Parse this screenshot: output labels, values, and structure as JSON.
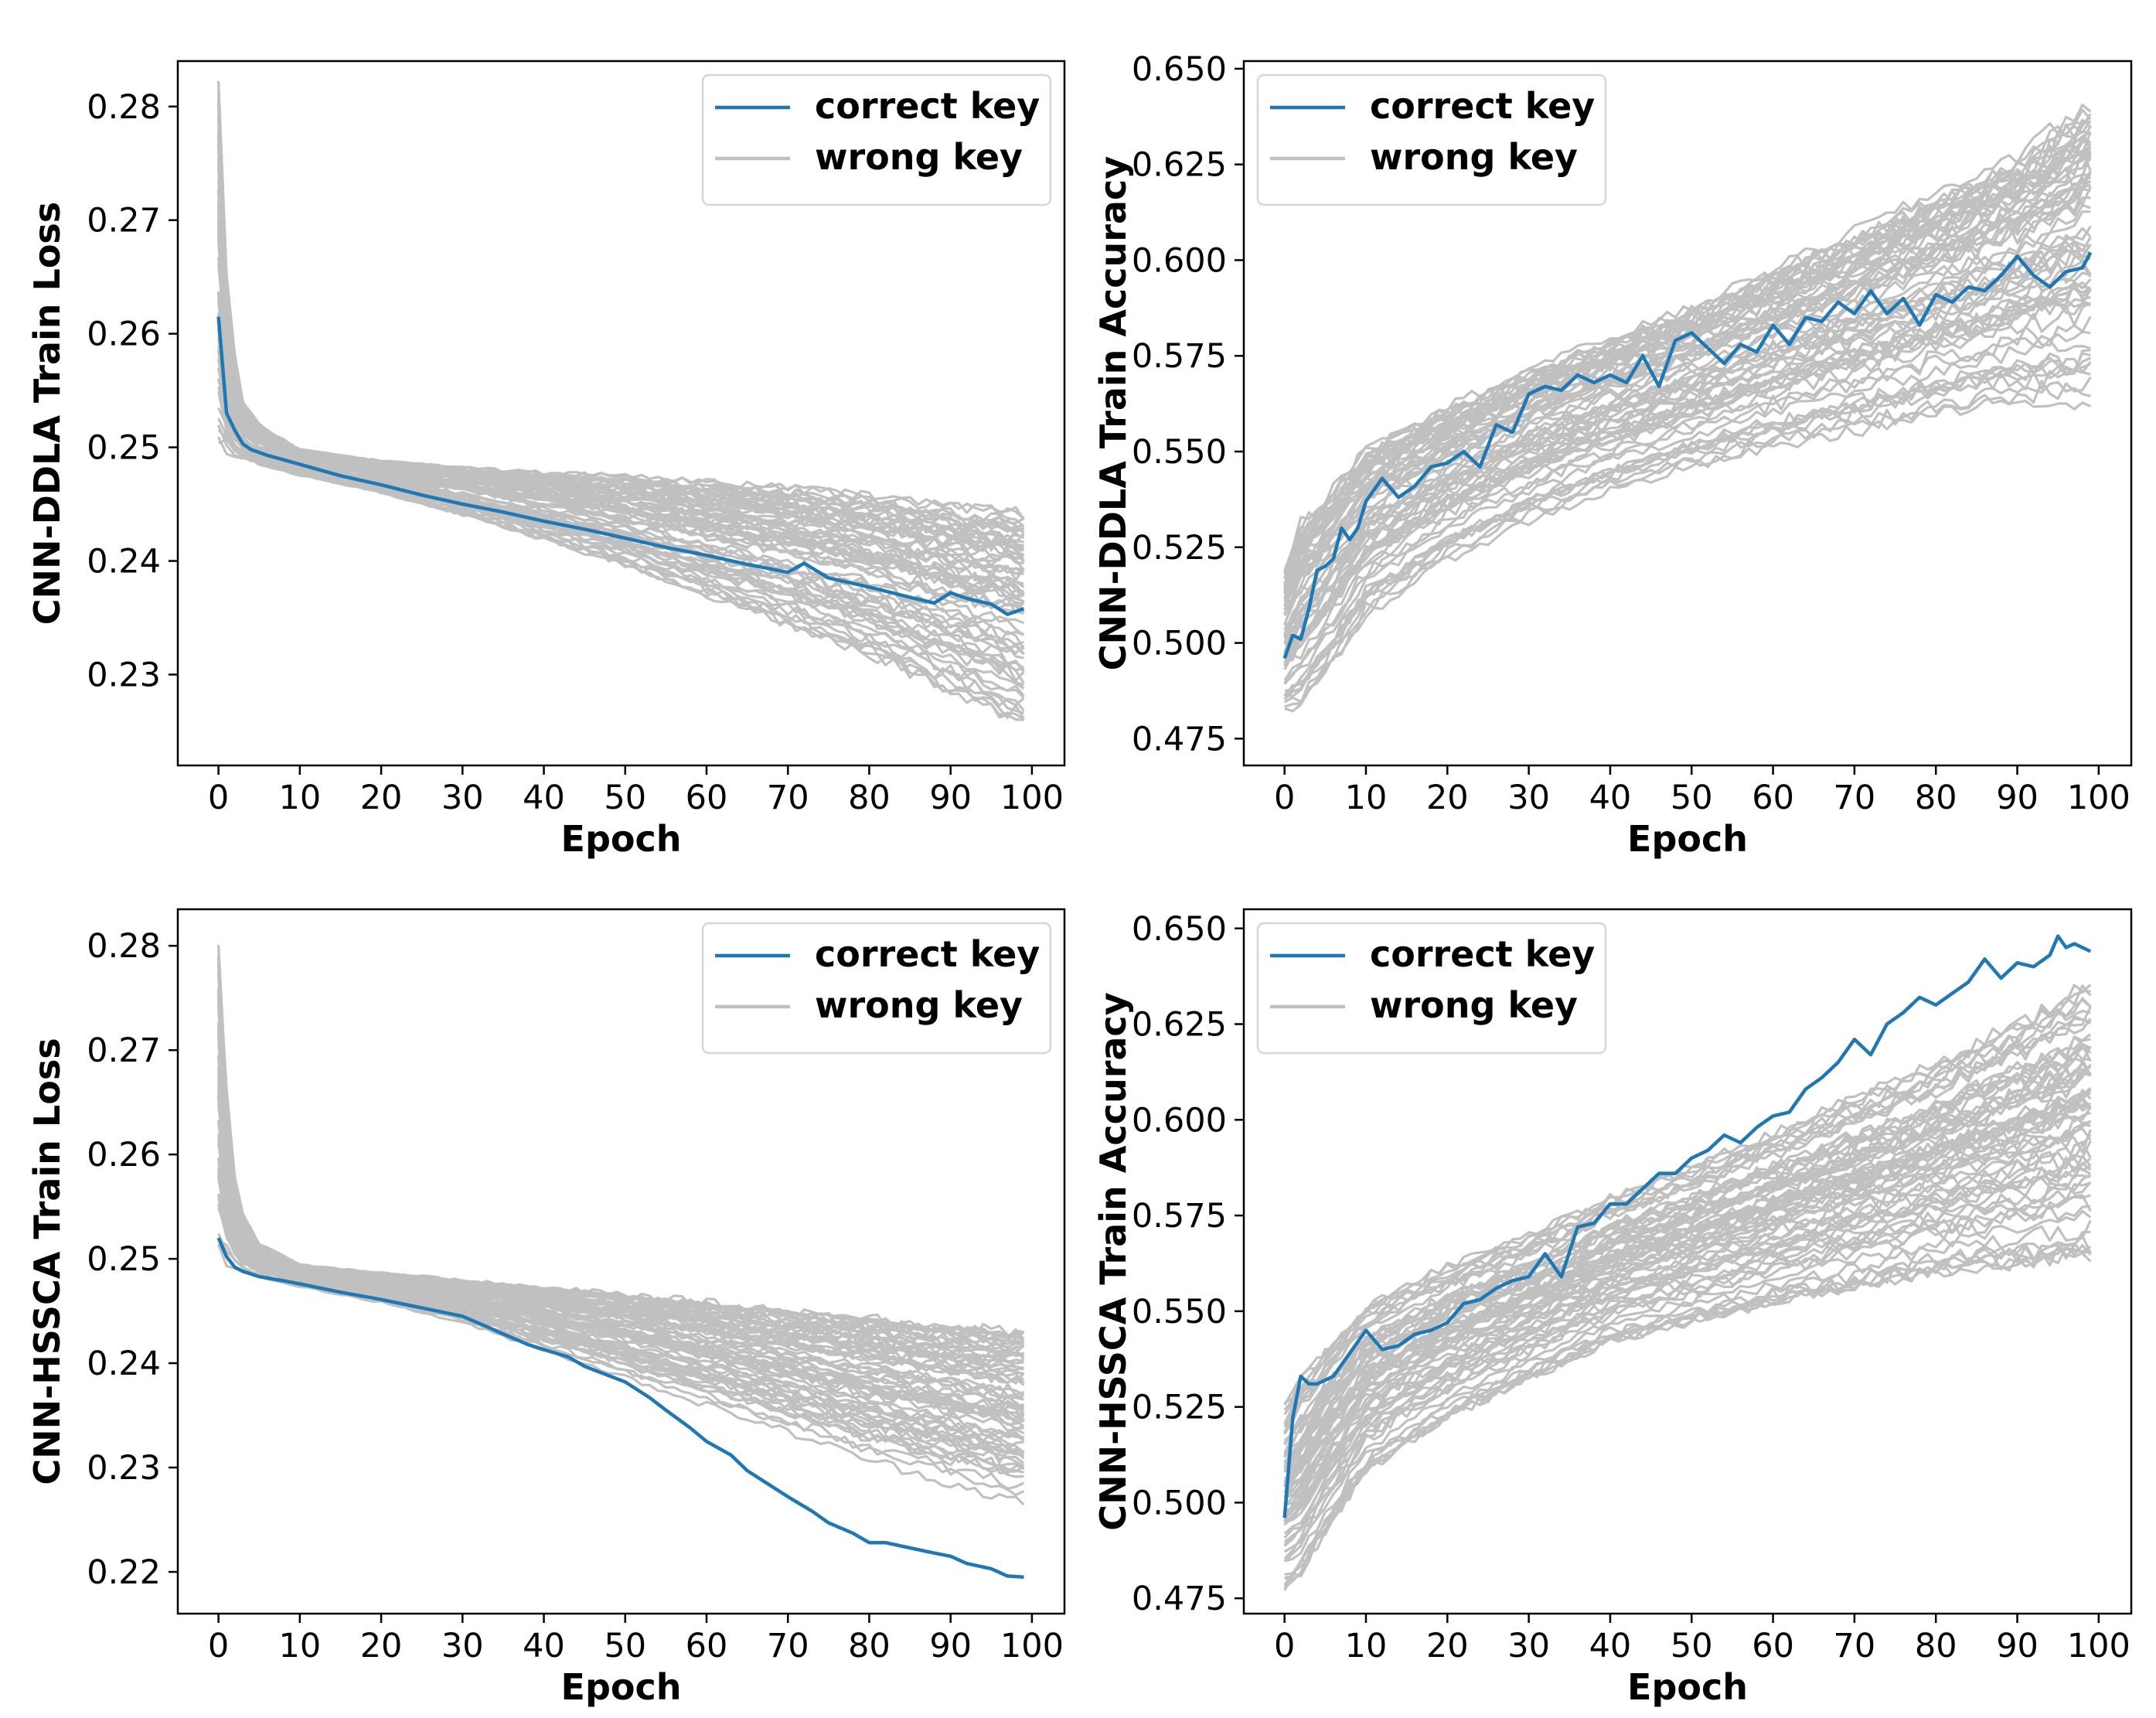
{
  "chart_data": [
    {
      "type": "line",
      "ylabel": "CNN-DDLA Train Loss",
      "xlabel": "Epoch",
      "xlim": [
        -5,
        104
      ],
      "ylim": [
        0.222,
        0.284
      ],
      "xticks": [
        0,
        10,
        20,
        30,
        40,
        50,
        60,
        70,
        80,
        90,
        100
      ],
      "yticks": [
        0.23,
        0.24,
        0.25,
        0.26,
        0.27,
        0.28
      ],
      "ytick_labels": [
        "0.23",
        "0.24",
        "0.25",
        "0.26",
        "0.27",
        "0.28"
      ],
      "legend": {
        "position": "top-right",
        "entries": [
          "correct key",
          "wrong key"
        ]
      },
      "series": [
        {
          "name": "correct key",
          "color": "#1f77b4",
          "x": [
            0,
            1,
            2,
            3,
            4,
            6,
            8,
            10,
            15,
            20,
            25,
            30,
            35,
            40,
            45,
            50,
            55,
            60,
            65,
            70,
            72,
            75,
            80,
            85,
            88,
            90,
            92,
            95,
            97,
            99
          ],
          "y": [
            0.2615,
            0.253,
            0.2515,
            0.2503,
            0.2498,
            0.2493,
            0.2489,
            0.2485,
            0.2475,
            0.2467,
            0.2458,
            0.245,
            0.2443,
            0.2435,
            0.2428,
            0.242,
            0.2412,
            0.2405,
            0.2397,
            0.239,
            0.2398,
            0.2385,
            0.2377,
            0.2368,
            0.2363,
            0.2372,
            0.2367,
            0.2362,
            0.2353,
            0.2358
          ]
        },
        {
          "name": "wrong key",
          "color": "#c0c0c0",
          "envelope": {
            "x": [
              0,
              1,
              2,
              3,
              5,
              10,
              20,
              30,
              40,
              50,
              60,
              70,
              80,
              90,
              99
            ],
            "upper": [
              0.282,
              0.265,
              0.258,
              0.254,
              0.252,
              0.2498,
              0.2488,
              0.2482,
              0.2478,
              0.2475,
              0.247,
              0.2465,
              0.2458,
              0.2448,
              0.2443
            ],
            "lower": [
              0.25,
              0.2495,
              0.2492,
              0.249,
              0.2485,
              0.2475,
              0.246,
              0.244,
              0.2418,
              0.2395,
              0.2368,
              0.2342,
              0.2315,
              0.2282,
              0.2255
            ]
          }
        }
      ]
    },
    {
      "type": "line",
      "ylabel": "CNN-DDLA Train Accuracy",
      "xlabel": "Epoch",
      "xlim": [
        -5,
        104
      ],
      "ylim": [
        0.468,
        0.652
      ],
      "xticks": [
        0,
        10,
        20,
        30,
        40,
        50,
        60,
        70,
        80,
        90,
        100
      ],
      "yticks": [
        0.475,
        0.5,
        0.525,
        0.55,
        0.575,
        0.6,
        0.625,
        0.65
      ],
      "ytick_labels": [
        "0.475",
        "0.500",
        "0.525",
        "0.550",
        "0.575",
        "0.600",
        "0.625",
        "0.650"
      ],
      "legend": {
        "position": "top-left",
        "entries": [
          "correct key",
          "wrong key"
        ]
      },
      "series": [
        {
          "name": "correct key",
          "color": "#1f77b4",
          "x": [
            0,
            1,
            2,
            3,
            4,
            5,
            6,
            7,
            8,
            9,
            10,
            12,
            14,
            16,
            18,
            20,
            22,
            24,
            26,
            28,
            30,
            32,
            34,
            36,
            38,
            40,
            42,
            44,
            46,
            48,
            50,
            52,
            54,
            56,
            58,
            60,
            62,
            64,
            66,
            68,
            70,
            72,
            74,
            76,
            78,
            80,
            82,
            84,
            86,
            88,
            90,
            92,
            94,
            96,
            98,
            99
          ],
          "y": [
            0.496,
            0.502,
            0.501,
            0.509,
            0.519,
            0.52,
            0.522,
            0.53,
            0.527,
            0.53,
            0.537,
            0.543,
            0.538,
            0.541,
            0.546,
            0.547,
            0.55,
            0.546,
            0.557,
            0.555,
            0.565,
            0.567,
            0.566,
            0.57,
            0.568,
            0.57,
            0.568,
            0.575,
            0.567,
            0.579,
            0.581,
            0.577,
            0.573,
            0.578,
            0.576,
            0.583,
            0.578,
            0.585,
            0.584,
            0.589,
            0.586,
            0.592,
            0.586,
            0.59,
            0.583,
            0.591,
            0.589,
            0.593,
            0.592,
            0.596,
            0.601,
            0.596,
            0.593,
            0.597,
            0.598,
            0.602
          ]
        },
        {
          "name": "wrong key",
          "color": "#c0c0c0",
          "envelope": {
            "x": [
              0,
              2,
              5,
              10,
              20,
              30,
              40,
              50,
              60,
              70,
              80,
              90,
              99
            ],
            "upper": [
              0.52,
              0.532,
              0.538,
              0.552,
              0.562,
              0.572,
              0.58,
              0.588,
              0.598,
              0.608,
              0.618,
              0.628,
              0.642
            ],
            "lower": [
              0.48,
              0.481,
              0.49,
              0.505,
              0.52,
              0.53,
              0.538,
              0.544,
              0.549,
              0.553,
              0.557,
              0.56,
              0.56
            ]
          }
        }
      ]
    },
    {
      "type": "line",
      "ylabel": "CNN-HSSCA Train Loss",
      "xlabel": "Epoch",
      "xlim": [
        -5,
        104
      ],
      "ylim": [
        0.216,
        0.2835
      ],
      "xticks": [
        0,
        10,
        20,
        30,
        40,
        50,
        60,
        70,
        80,
        90,
        100
      ],
      "yticks": [
        0.22,
        0.23,
        0.24,
        0.25,
        0.26,
        0.27,
        0.28
      ],
      "ytick_labels": [
        "0.22",
        "0.23",
        "0.24",
        "0.25",
        "0.26",
        "0.27",
        "0.28"
      ],
      "legend": {
        "position": "top-right",
        "entries": [
          "correct key",
          "wrong key"
        ]
      },
      "series": [
        {
          "name": "correct key",
          "color": "#1f77b4",
          "x": [
            0,
            1,
            2,
            3,
            5,
            8,
            10,
            15,
            20,
            25,
            30,
            33,
            35,
            38,
            40,
            43,
            45,
            48,
            50,
            53,
            55,
            58,
            60,
            63,
            65,
            68,
            70,
            73,
            75,
            78,
            80,
            82,
            85,
            88,
            90,
            92,
            95,
            97,
            99
          ],
          "y": [
            0.252,
            0.2502,
            0.2492,
            0.2488,
            0.2483,
            0.2479,
            0.2476,
            0.2468,
            0.2461,
            0.2453,
            0.2445,
            0.2435,
            0.2428,
            0.2418,
            0.2413,
            0.2406,
            0.2397,
            0.2388,
            0.2382,
            0.2367,
            0.2355,
            0.2338,
            0.2325,
            0.2312,
            0.2297,
            0.2282,
            0.2272,
            0.2258,
            0.2247,
            0.2237,
            0.2228,
            0.2228,
            0.2223,
            0.2218,
            0.2215,
            0.2208,
            0.2203,
            0.2196,
            0.2195
          ]
        },
        {
          "name": "wrong key",
          "color": "#c0c0c0",
          "envelope": {
            "x": [
              0,
              1,
              2,
              3,
              5,
              10,
              20,
              30,
              40,
              50,
              60,
              70,
              80,
              90,
              99
            ],
            "upper": [
              0.2805,
              0.266,
              0.258,
              0.2545,
              0.2515,
              0.2495,
              0.2487,
              0.248,
              0.2473,
              0.2467,
              0.246,
              0.2452,
              0.2445,
              0.2438,
              0.2433
            ],
            "lower": [
              0.2498,
              0.2494,
              0.249,
              0.2487,
              0.2482,
              0.2473,
              0.2458,
              0.2438,
              0.2412,
              0.2385,
              0.2358,
              0.2332,
              0.2305,
              0.2282,
              0.2262
            ]
          }
        }
      ]
    },
    {
      "type": "line",
      "ylabel": "CNN-HSSCA Train Accuracy",
      "xlabel": "Epoch",
      "xlim": [
        -5,
        104
      ],
      "ylim": [
        0.471,
        0.655
      ],
      "xticks": [
        0,
        10,
        20,
        30,
        40,
        50,
        60,
        70,
        80,
        90,
        100
      ],
      "yticks": [
        0.475,
        0.5,
        0.525,
        0.55,
        0.575,
        0.6,
        0.625,
        0.65
      ],
      "ytick_labels": [
        "0.475",
        "0.500",
        "0.525",
        "0.550",
        "0.575",
        "0.600",
        "0.625",
        "0.650"
      ],
      "legend": {
        "position": "top-left",
        "entries": [
          "correct key",
          "wrong key"
        ]
      },
      "series": [
        {
          "name": "correct key",
          "color": "#1f77b4",
          "x": [
            0,
            1,
            2,
            3,
            4,
            6,
            8,
            10,
            12,
            14,
            16,
            18,
            20,
            22,
            24,
            26,
            28,
            30,
            32,
            34,
            36,
            38,
            40,
            42,
            44,
            46,
            48,
            50,
            52,
            54,
            56,
            58,
            60,
            62,
            64,
            66,
            68,
            70,
            72,
            74,
            76,
            78,
            80,
            82,
            84,
            86,
            88,
            90,
            92,
            94,
            95,
            96,
            97,
            98,
            99
          ],
          "y": [
            0.496,
            0.522,
            0.533,
            0.531,
            0.531,
            0.533,
            0.539,
            0.545,
            0.54,
            0.541,
            0.544,
            0.545,
            0.547,
            0.552,
            0.553,
            0.556,
            0.558,
            0.559,
            0.565,
            0.559,
            0.572,
            0.573,
            0.578,
            0.578,
            0.582,
            0.586,
            0.586,
            0.59,
            0.592,
            0.596,
            0.594,
            0.598,
            0.601,
            0.602,
            0.608,
            0.611,
            0.615,
            0.621,
            0.617,
            0.625,
            0.628,
            0.632,
            0.63,
            0.633,
            0.636,
            0.642,
            0.637,
            0.641,
            0.64,
            0.643,
            0.648,
            0.645,
            0.646,
            0.645,
            0.644
          ]
        },
        {
          "name": "wrong key",
          "color": "#c0c0c0",
          "envelope": {
            "x": [
              0,
              2,
              5,
              10,
              20,
              30,
              40,
              50,
              60,
              70,
              80,
              90,
              99
            ],
            "upper": [
              0.525,
              0.532,
              0.54,
              0.552,
              0.562,
              0.57,
              0.58,
              0.588,
              0.597,
              0.606,
              0.615,
              0.626,
              0.636
            ],
            "lower": [
              0.478,
              0.481,
              0.492,
              0.508,
              0.522,
              0.532,
              0.542,
              0.547,
              0.552,
              0.556,
              0.56,
              0.562,
              0.564
            ]
          }
        }
      ]
    }
  ]
}
